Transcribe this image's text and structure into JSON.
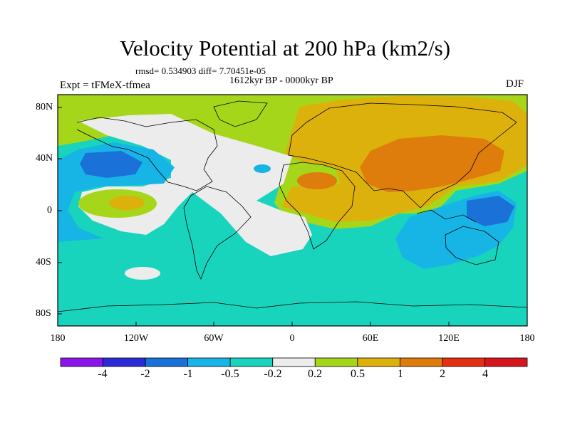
{
  "title": "Velocity Potential at 200 hPa (km2/s)",
  "stats": "rmsd= 0.534903 diff= 7.70451e-05",
  "period": "1612kyr BP - 0000kyr BP",
  "experiment": "Expt = tFMeX-tfmea",
  "season": "DJF",
  "lat_ticks": [
    "80N",
    "40N",
    "0",
    "40S",
    "80S"
  ],
  "lon_ticks": [
    "180",
    "120W",
    "60W",
    "0",
    "60E",
    "120E",
    "180"
  ],
  "colorbar": {
    "labels": [
      "-4",
      "-2",
      "-1",
      "-0.5",
      "-0.2",
      "0.2",
      "0.5",
      "1",
      "2",
      "4"
    ],
    "colors": [
      "#8a17e8",
      "#2c2cd6",
      "#1a72d8",
      "#17b4e6",
      "#18d4bd",
      "#ececec",
      "#a6d61a",
      "#ddb10b",
      "#de7c0c",
      "#e52f12",
      "#d6161d"
    ]
  },
  "levels": {
    "strong_neg": "#1a72d8",
    "neg": "#17b4e6",
    "weak_neg": "#18d4bd",
    "neutral": "#ececec",
    "weak_pos": "#a6d61a",
    "pos": "#ddb10b",
    "strong_pos": "#de7c0c"
  }
}
